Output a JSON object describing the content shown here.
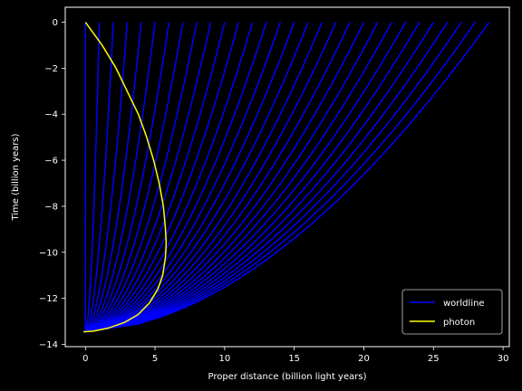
{
  "chart_data": {
    "type": "line",
    "xlabel": "Proper distance (billion light years)",
    "ylabel": "Time (billion years)",
    "xlim": [
      -1.45,
      30.45
    ],
    "ylim": [
      -14.1,
      0.65
    ],
    "xticks": [
      0,
      5,
      10,
      15,
      20,
      25,
      30
    ],
    "yticks": [
      0,
      -2,
      -4,
      -6,
      -8,
      -10,
      -12,
      -14
    ],
    "grid": false,
    "legend": {
      "placement": "lower-right"
    },
    "background": "#000000",
    "foreground": "#ffffff",
    "series": [
      {
        "name": "worldline",
        "color": "#0000ff",
        "style": "fan of straight-ish worldlines from the Big Bang origin to present-day distances",
        "origin": [
          0,
          -13.45
        ],
        "present_distances": [
          0,
          1,
          2,
          3,
          4,
          5,
          6,
          7,
          8,
          9,
          10,
          11,
          12,
          13,
          14,
          15,
          16,
          17,
          18,
          19,
          20,
          21,
          22,
          23,
          24,
          25,
          26,
          27,
          28,
          29
        ]
      },
      {
        "name": "photon",
        "color": "#ffff00",
        "x": [
          0.0,
          1.2,
          2.2,
          3.0,
          3.8,
          4.4,
          4.9,
          5.3,
          5.6,
          5.75,
          5.8,
          5.75,
          5.55,
          5.2,
          4.6,
          3.8,
          2.8,
          1.6,
          0.6,
          0.0,
          -0.15
        ],
        "y": [
          0.0,
          -1.0,
          -2.0,
          -3.0,
          -4.0,
          -5.0,
          -6.0,
          -7.0,
          -8.0,
          -9.0,
          -9.6,
          -10.2,
          -11.0,
          -11.6,
          -12.2,
          -12.7,
          -13.05,
          -13.3,
          -13.42,
          -13.45,
          -13.45
        ]
      }
    ]
  }
}
